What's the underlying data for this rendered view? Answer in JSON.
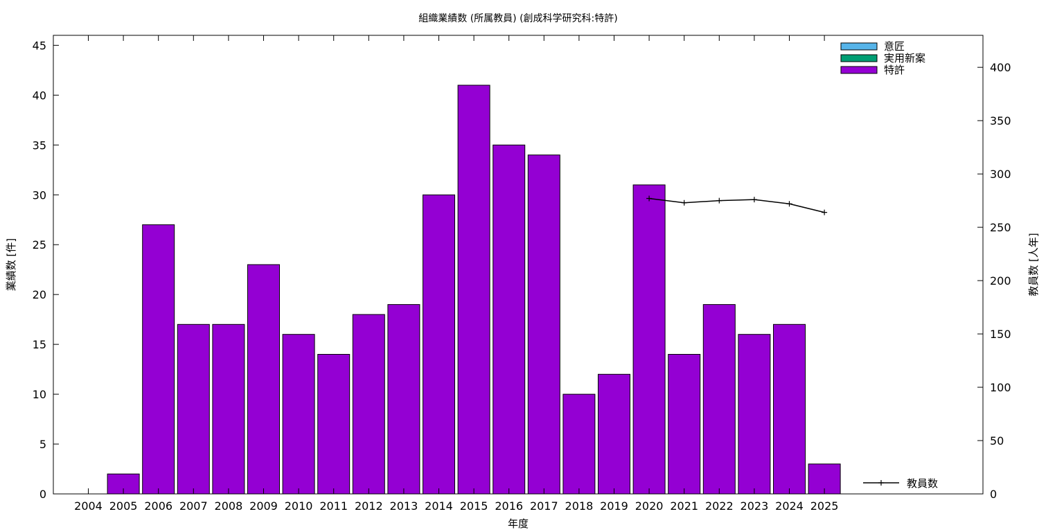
{
  "chart_data": {
    "type": "bar",
    "title": "組織業績数 (所属教員) (創成科学研究科:特許)",
    "xlabel": "年度",
    "ylabel": "業績数 [件]",
    "y2label": "教員数 [人年]",
    "categories": [
      "2004",
      "2005",
      "2006",
      "2007",
      "2008",
      "2009",
      "2010",
      "2011",
      "2012",
      "2013",
      "2014",
      "2015",
      "2016",
      "2017",
      "2018",
      "2019",
      "2020",
      "2021",
      "2022",
      "2023",
      "2024",
      "2025"
    ],
    "ylim": [
      0,
      46
    ],
    "yticks": [
      0,
      5,
      10,
      15,
      20,
      25,
      30,
      35,
      40,
      45
    ],
    "y2lim": [
      0,
      430
    ],
    "y2ticks": [
      0,
      50,
      100,
      150,
      200,
      250,
      300,
      350,
      400
    ],
    "grid": false,
    "legend_position": "top-right",
    "series": [
      {
        "name": "意匠",
        "type": "bar",
        "color": "#56b4e9",
        "values": [
          0,
          0,
          0,
          0,
          0,
          0,
          0,
          0,
          0,
          0,
          0,
          0,
          0,
          0,
          0,
          0,
          0,
          0,
          0,
          0,
          0,
          0
        ]
      },
      {
        "name": "実用新案",
        "type": "bar",
        "color": "#009e73",
        "values": [
          0,
          0,
          0,
          0,
          0,
          0,
          0,
          0,
          0,
          0,
          0,
          0,
          0,
          0,
          0,
          0,
          0,
          0,
          0,
          0,
          0,
          0
        ]
      },
      {
        "name": "特許",
        "type": "bar",
        "color": "#9400d3",
        "values": [
          0,
          2,
          27,
          17,
          17,
          23,
          16,
          14,
          18,
          19,
          30,
          41,
          35,
          34,
          10,
          12,
          31,
          14,
          19,
          16,
          17,
          3
        ]
      },
      {
        "name": "教員数",
        "type": "line",
        "axis": "y2",
        "color": "#000000",
        "x": [
          "2020",
          "2021",
          "2022",
          "2023",
          "2024",
          "2025"
        ],
        "values": [
          277,
          273,
          275,
          276,
          272,
          264
        ]
      }
    ]
  }
}
